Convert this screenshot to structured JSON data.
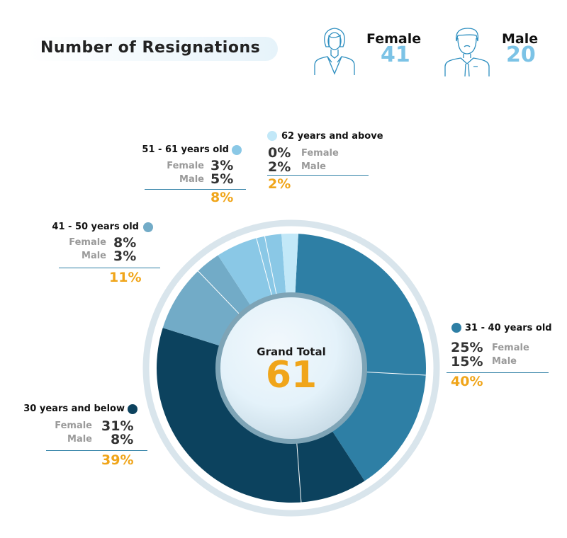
{
  "header": {
    "title": "Number of Resignations"
  },
  "gender": [
    {
      "label": "Female",
      "value": "41",
      "icon": "female-person-icon"
    },
    {
      "label": "Male",
      "value": "20",
      "icon": "male-person-icon"
    }
  ],
  "center": {
    "label": "Grand Total",
    "value": "61"
  },
  "labels": {
    "female": "Female",
    "male": "Male"
  },
  "colors": {
    "accent": "#f0a51a",
    "ring": "#d9e5ec",
    "gender_value": "#7cc3e6"
  },
  "chart_data": {
    "type": "pie",
    "donut": true,
    "total": 61,
    "groups": [
      {
        "name": "31 - 40 years old",
        "female": "25%",
        "male": "15%",
        "total": "40%",
        "value": 40,
        "color": "#2e7fa5",
        "splits": [
          25,
          15
        ]
      },
      {
        "name": "30 years and below",
        "female": "31%",
        "male": "8%",
        "total": "39%",
        "value": 39,
        "color": "#0c425e",
        "splits": [
          8,
          31
        ]
      },
      {
        "name": "41 - 50 years old",
        "female": "8%",
        "male": "3%",
        "total": "11%",
        "value": 11,
        "color": "#72abc7",
        "splits": [
          8,
          3
        ]
      },
      {
        "name": "51 - 61 years old",
        "female": "3%",
        "male": "5%",
        "total": "8%",
        "value": 8,
        "color": "#8ac8e6",
        "splits": [
          5,
          1,
          2
        ]
      },
      {
        "name": "62 years and above",
        "female": "0%",
        "male": "2%",
        "total": "2%",
        "value": 2,
        "color": "#c2e8f8",
        "splits": [
          2
        ]
      }
    ]
  }
}
